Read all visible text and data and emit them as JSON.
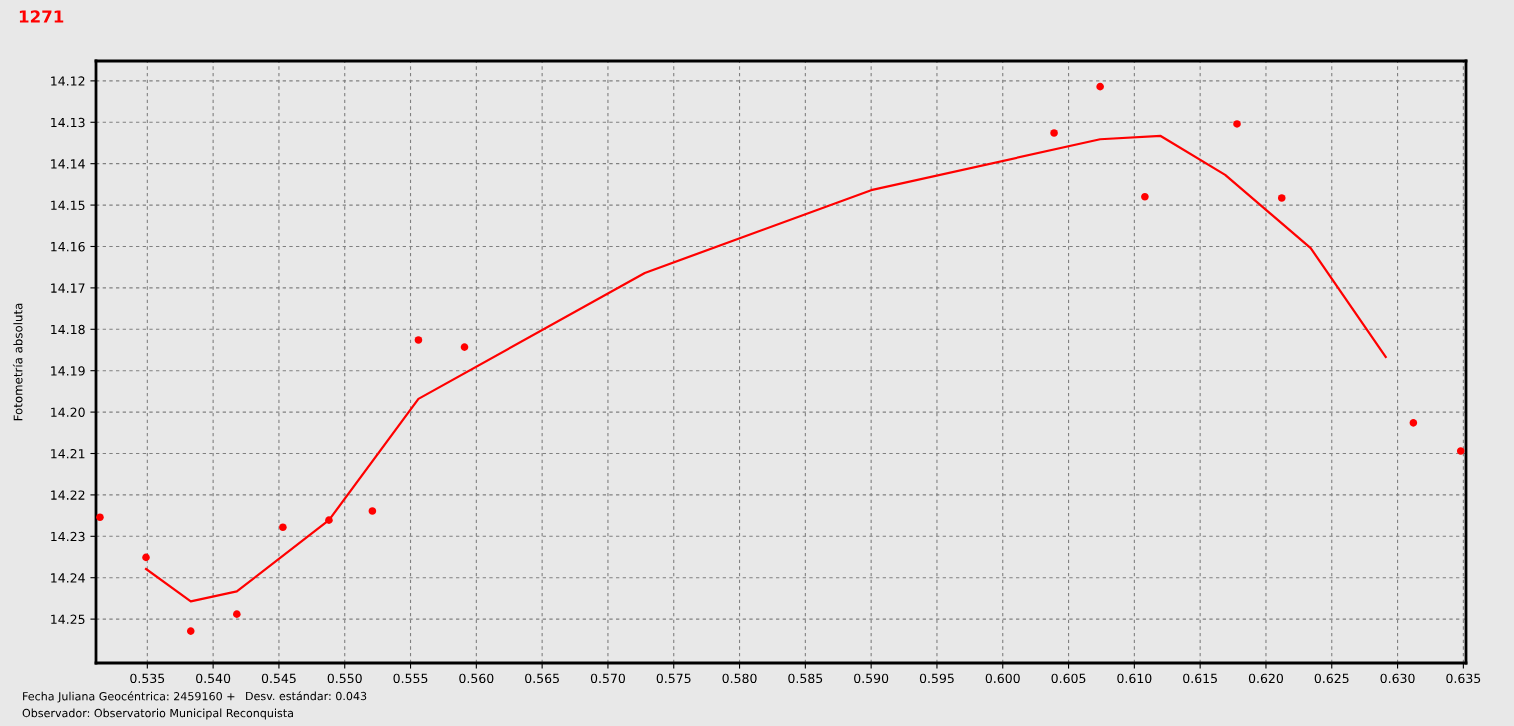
{
  "chart_data": {
    "type": "scatter",
    "title": "1271",
    "ylabel": "Fotometría absoluta",
    "annotations": [
      "Fecha Juliana Geocéntrica: 2459160 +",
      "Desv. estándar: 0.043",
      "Observador: Observatorio Municipal Reconquista"
    ],
    "xlim": [
      0.5311,
      0.6352
    ],
    "ylim": [
      14.2606,
      14.1152
    ],
    "xticks": [
      0.535,
      {
        "value": 0.54,
        "label": "0.540"
      },
      0.545,
      {
        "value": 0.55,
        "label": "0.550"
      },
      0.555,
      {
        "value": 0.56,
        "label": "0.560"
      },
      0.565,
      {
        "value": 0.57,
        "label": "0.570"
      },
      0.575,
      {
        "value": 0.58,
        "label": "0.580"
      },
      0.585,
      {
        "value": 0.59,
        "label": "0.590"
      },
      0.595,
      {
        "value": 0.6,
        "label": "0.600"
      },
      0.605,
      {
        "value": 0.61,
        "label": "0.610"
      },
      0.615,
      {
        "value": 0.62,
        "label": "0.620"
      },
      0.625,
      {
        "value": 0.63,
        "label": "0.630"
      },
      0.635
    ],
    "yticks": [
      14.12,
      14.13,
      14.14,
      14.15,
      14.16,
      14.17,
      14.18,
      14.19,
      {
        "value": 14.2,
        "label": "14.20"
      },
      14.21,
      14.22,
      14.23,
      14.24,
      14.25
    ],
    "grid": true,
    "series": [
      {
        "marker": "circle",
        "color": "#ff0000",
        "x": [
          0.5314,
          0.5349,
          0.5383,
          0.5418,
          0.5453,
          0.5488,
          0.5521,
          0.5556,
          0.5591,
          0.6039,
          0.6074,
          0.6108,
          0.6178,
          0.6212,
          0.6312,
          0.6348
        ],
        "values": [
          14.2254,
          14.2351,
          14.2529,
          14.2488,
          14.2278,
          14.2261,
          14.2239,
          14.1826,
          14.1843,
          14.1326,
          14.1214,
          14.148,
          14.1304,
          14.1483,
          14.2026,
          14.2094
        ]
      },
      {
        "type": "line",
        "marker": "none",
        "color": "#ff0000",
        "line_style": "solid",
        "x": [
          0.5349,
          0.5383,
          0.5418,
          0.5488,
          0.5556,
          0.5728,
          0.59,
          0.6074,
          0.612,
          0.6169,
          0.6234,
          0.6291
        ],
        "values": [
          14.2379,
          14.2457,
          14.2433,
          14.2261,
          14.1968,
          14.1664,
          14.1464,
          14.1341,
          14.1333,
          14.1427,
          14.1604,
          14.1867
        ]
      }
    ]
  }
}
